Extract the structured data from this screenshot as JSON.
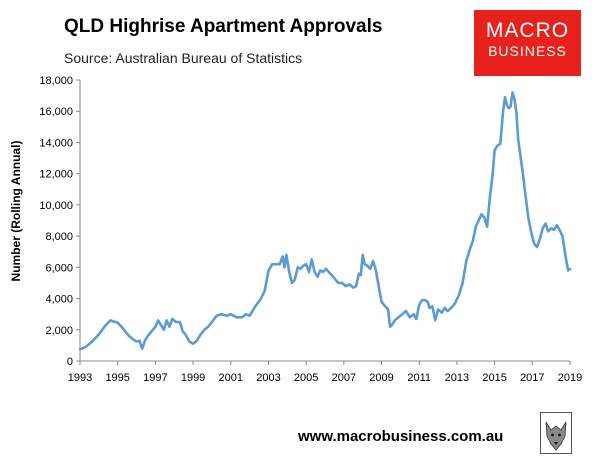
{
  "header": {
    "title": "QLD Highrise Apartment Approvals",
    "subtitle": "Source: Australian Bureau of Statistics"
  },
  "logo": {
    "line1": "MACRO",
    "line2": "BUSINESS"
  },
  "footer": {
    "url": "www.macrobusiness.com.au"
  },
  "colors": {
    "line": "#5b9bd5",
    "logo_bg": "#e8211c"
  },
  "chart_data": {
    "type": "line",
    "title": "QLD Highrise Apartment Approvals",
    "ylabel": "Number (Rolling Annual)",
    "xlabel": "",
    "xlim": [
      1993,
      2019
    ],
    "ylim": [
      0,
      18000
    ],
    "x_ticks": [
      "1993",
      "1995",
      "1997",
      "1999",
      "2001",
      "2003",
      "2005",
      "2007",
      "2009",
      "2011",
      "2013",
      "2015",
      "2017",
      "2019"
    ],
    "y_ticks": [
      "0",
      "2,000",
      "4,000",
      "6,000",
      "8,000",
      "10,000",
      "12,000",
      "14,000",
      "16,000",
      "18,000"
    ],
    "grid": false,
    "series": [
      {
        "points": [
          [
            1993.0,
            750
          ],
          [
            1993.3,
            900
          ],
          [
            1993.6,
            1200
          ],
          [
            1994.0,
            1700
          ],
          [
            1994.3,
            2200
          ],
          [
            1994.6,
            2600
          ],
          [
            1995.0,
            2450
          ],
          [
            1995.2,
            2200
          ],
          [
            1995.4,
            1900
          ],
          [
            1995.6,
            1600
          ],
          [
            1995.8,
            1400
          ],
          [
            1996.0,
            1250
          ],
          [
            1996.15,
            1300
          ],
          [
            1996.3,
            800
          ],
          [
            1996.45,
            1300
          ],
          [
            1996.6,
            1600
          ],
          [
            1996.8,
            1900
          ],
          [
            1997.0,
            2200
          ],
          [
            1997.15,
            2600
          ],
          [
            1997.3,
            2300
          ],
          [
            1997.45,
            2000
          ],
          [
            1997.6,
            2600
          ],
          [
            1997.75,
            2200
          ],
          [
            1997.9,
            2700
          ],
          [
            1998.1,
            2500
          ],
          [
            1998.3,
            2500
          ],
          [
            1998.45,
            1900
          ],
          [
            1998.6,
            1700
          ],
          [
            1998.8,
            1250
          ],
          [
            1999.0,
            1100
          ],
          [
            1999.2,
            1300
          ],
          [
            1999.4,
            1700
          ],
          [
            1999.6,
            2000
          ],
          [
            1999.8,
            2200
          ],
          [
            2000.0,
            2500
          ],
          [
            2000.25,
            2900
          ],
          [
            2000.5,
            3000
          ],
          [
            2000.8,
            2900
          ],
          [
            2001.0,
            3000
          ],
          [
            2001.3,
            2800
          ],
          [
            2001.6,
            2800
          ],
          [
            2001.8,
            3000
          ],
          [
            2002.0,
            2900
          ],
          [
            2002.3,
            3500
          ],
          [
            2002.6,
            4000
          ],
          [
            2002.8,
            4500
          ],
          [
            2003.0,
            5800
          ],
          [
            2003.2,
            6200
          ],
          [
            2003.4,
            6200
          ],
          [
            2003.6,
            6200
          ],
          [
            2003.75,
            6700
          ],
          [
            2003.85,
            6000
          ],
          [
            2003.95,
            6800
          ],
          [
            2004.1,
            5700
          ],
          [
            2004.25,
            5000
          ],
          [
            2004.4,
            5200
          ],
          [
            2004.55,
            6000
          ],
          [
            2004.7,
            5900
          ],
          [
            2004.85,
            6100
          ],
          [
            2005.0,
            6200
          ],
          [
            2005.15,
            5700
          ],
          [
            2005.3,
            6500
          ],
          [
            2005.45,
            5700
          ],
          [
            2005.6,
            5400
          ],
          [
            2005.75,
            5800
          ],
          [
            2005.9,
            5700
          ],
          [
            2006.05,
            5900
          ],
          [
            2006.2,
            5700
          ],
          [
            2006.35,
            5500
          ],
          [
            2006.5,
            5300
          ],
          [
            2006.7,
            5000
          ],
          [
            2006.9,
            5000
          ],
          [
            2007.1,
            4800
          ],
          [
            2007.3,
            4900
          ],
          [
            2007.5,
            4700
          ],
          [
            2007.65,
            4800
          ],
          [
            2007.8,
            5600
          ],
          [
            2007.9,
            5500
          ],
          [
            2008.0,
            6800
          ],
          [
            2008.1,
            6200
          ],
          [
            2008.25,
            6100
          ],
          [
            2008.4,
            5900
          ],
          [
            2008.55,
            6400
          ],
          [
            2008.7,
            5800
          ],
          [
            2008.85,
            4800
          ],
          [
            2009.0,
            3800
          ],
          [
            2009.2,
            3500
          ],
          [
            2009.35,
            3300
          ],
          [
            2009.45,
            2200
          ],
          [
            2009.55,
            2300
          ],
          [
            2009.7,
            2600
          ],
          [
            2009.9,
            2800
          ],
          [
            2010.1,
            3000
          ],
          [
            2010.3,
            3200
          ],
          [
            2010.5,
            2800
          ],
          [
            2010.7,
            3000
          ],
          [
            2010.85,
            2700
          ],
          [
            2011.0,
            3600
          ],
          [
            2011.15,
            3900
          ],
          [
            2011.3,
            3900
          ],
          [
            2011.45,
            3800
          ],
          [
            2011.55,
            3400
          ],
          [
            2011.7,
            3500
          ],
          [
            2011.85,
            2600
          ],
          [
            2012.0,
            3300
          ],
          [
            2012.2,
            3100
          ],
          [
            2012.35,
            3400
          ],
          [
            2012.5,
            3200
          ],
          [
            2012.7,
            3400
          ],
          [
            2012.9,
            3700
          ],
          [
            2013.1,
            4200
          ],
          [
            2013.3,
            5000
          ],
          [
            2013.5,
            6400
          ],
          [
            2013.7,
            7200
          ],
          [
            2013.85,
            7700
          ],
          [
            2014.0,
            8600
          ],
          [
            2014.15,
            9000
          ],
          [
            2014.3,
            9400
          ],
          [
            2014.45,
            9200
          ],
          [
            2014.6,
            8600
          ],
          [
            2014.75,
            10500
          ],
          [
            2014.9,
            12000
          ],
          [
            2015.0,
            13500
          ],
          [
            2015.15,
            13800
          ],
          [
            2015.3,
            13900
          ],
          [
            2015.45,
            16000
          ],
          [
            2015.55,
            16900
          ],
          [
            2015.65,
            16400
          ],
          [
            2015.75,
            16200
          ],
          [
            2015.85,
            16300
          ],
          [
            2015.95,
            17200
          ],
          [
            2016.05,
            16800
          ],
          [
            2016.15,
            16000
          ],
          [
            2016.25,
            14200
          ],
          [
            2016.35,
            13300
          ],
          [
            2016.5,
            12000
          ],
          [
            2016.65,
            10500
          ],
          [
            2016.8,
            9100
          ],
          [
            2016.95,
            8200
          ],
          [
            2017.1,
            7500
          ],
          [
            2017.25,
            7300
          ],
          [
            2017.4,
            7800
          ],
          [
            2017.55,
            8500
          ],
          [
            2017.7,
            8800
          ],
          [
            2017.85,
            8300
          ],
          [
            2018.0,
            8500
          ],
          [
            2018.15,
            8400
          ],
          [
            2018.3,
            8700
          ],
          [
            2018.45,
            8400
          ],
          [
            2018.6,
            8000
          ],
          [
            2018.75,
            6800
          ],
          [
            2018.9,
            5800
          ],
          [
            2019.0,
            5900
          ]
        ]
      }
    ]
  }
}
